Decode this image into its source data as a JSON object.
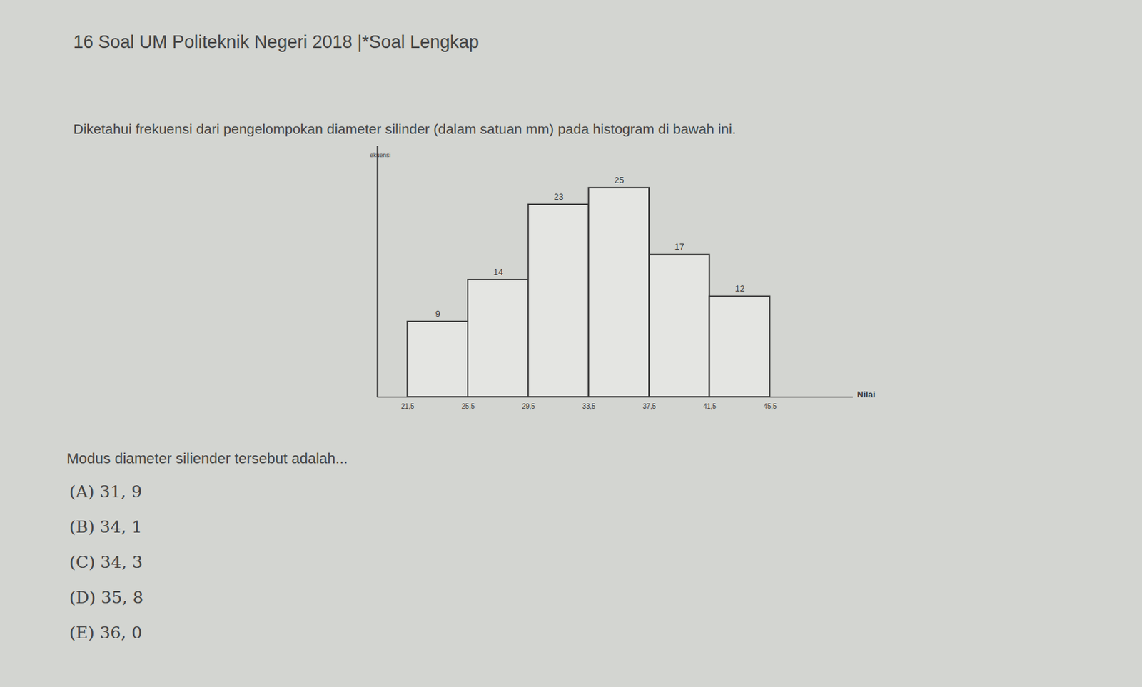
{
  "header": {
    "title": "16  Soal UM Politeknik Negeri 2018 |*Soal Lengkap"
  },
  "question": "Diketahui frekuensi dari pengelompokan diameter silinder (dalam satuan mm) pada histogram di bawah ini.",
  "chart_data": {
    "type": "histogram",
    "x_label": "Nilai",
    "y_label": "Frekuensi",
    "bins": [
      21.5,
      25.5,
      29.5,
      33.5,
      37.5,
      41.5,
      45.5
    ],
    "values": [
      9,
      14,
      23,
      25,
      17,
      12
    ],
    "xlim": [
      19.5,
      51
    ],
    "ylim": [
      0,
      30
    ],
    "xticks": [
      {
        "value": 21.5,
        "label": "21,5"
      },
      {
        "value": 25.5,
        "label": "25,5"
      },
      {
        "value": 29.5,
        "label": "29,5"
      },
      {
        "value": 33.5,
        "label": "33,5"
      },
      {
        "value": 37.5,
        "label": "37,5"
      },
      {
        "value": 41.5,
        "label": "41,5"
      },
      {
        "value": 45.5,
        "label": "45,5"
      }
    ],
    "tick_labels": "x",
    "data_labels": true,
    "grid": false
  },
  "prompt": "Modus diameter siliender tersebut adalah...",
  "options": [
    "(A) 31, 9",
    "(B) 34, 1",
    "(C) 34, 3",
    "(D) 35, 8",
    "(E) 36, 0"
  ]
}
